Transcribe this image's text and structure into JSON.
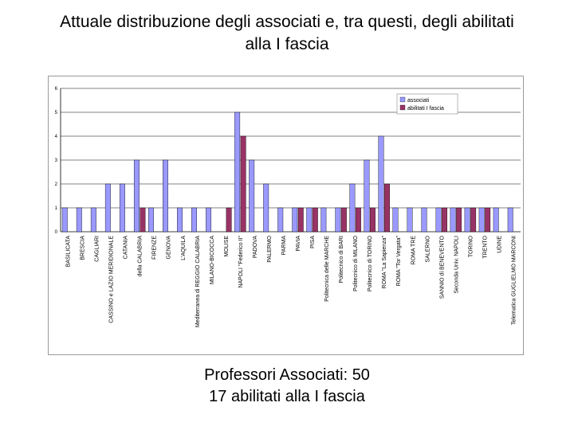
{
  "slide": {
    "title_line1": "Attuale distribuzione degli associati e, tra questi, degli abilitati",
    "title_line2": "alla I fascia",
    "caption_line1": "Professori Associati: 50",
    "caption_line2": "17 abilitati alla I fascia"
  },
  "chart_data": {
    "type": "bar",
    "title": "",
    "xlabel": "",
    "ylabel": "",
    "ylim": [
      0,
      6
    ],
    "yticks": [
      0,
      1,
      2,
      3,
      4,
      5,
      6
    ],
    "grid": true,
    "legend_position": "top-right",
    "categories": [
      "BASILICATA",
      "BRESCIA",
      "CAGLIARI",
      "CASSINO e LAZIO MERIDIONALE",
      "CATANIA",
      "della CALABRIA",
      "FIRENZE",
      "GENOVA",
      "L'AQUILA",
      "Mediterranea di REGGIO CALABRIA",
      "MILANO-BICOCCA",
      "MOLISE",
      "NAPOLI \"Federico II\"",
      "PADOVA",
      "PALERMO",
      "PARMA",
      "PAVIA",
      "PISA",
      "Politecnica delle MARCHE",
      "Politecnico di BARI",
      "Politecnico di MILANO",
      "Politecnico di TORINO",
      "ROMA \"La Sapienza\"",
      "ROMA \"Tor Vergata\"",
      "ROMA TRE",
      "SALERNO",
      "SANNIO di BENEVENTO",
      "Seconda Univ. NAPOLI",
      "TORINO",
      "TRENTO",
      "UDINE",
      "Telematica GUGLIELMO MARCONI"
    ],
    "series": [
      {
        "name": "associati",
        "color": "#9999ff",
        "values": [
          1,
          1,
          1,
          2,
          2,
          3,
          1,
          3,
          1,
          1,
          1,
          0,
          5,
          3,
          2,
          1,
          1,
          1,
          1,
          1,
          2,
          3,
          4,
          1,
          1,
          1,
          1,
          1,
          1,
          1,
          1,
          1
        ]
      },
      {
        "name": "abilitati I fascia",
        "color": "#993366",
        "values": [
          0,
          0,
          0,
          0,
          0,
          1,
          0,
          0,
          0,
          0,
          0,
          1,
          4,
          0,
          0,
          0,
          1,
          1,
          0,
          1,
          1,
          1,
          2,
          0,
          0,
          0,
          1,
          1,
          1,
          1,
          0,
          0
        ]
      }
    ]
  }
}
